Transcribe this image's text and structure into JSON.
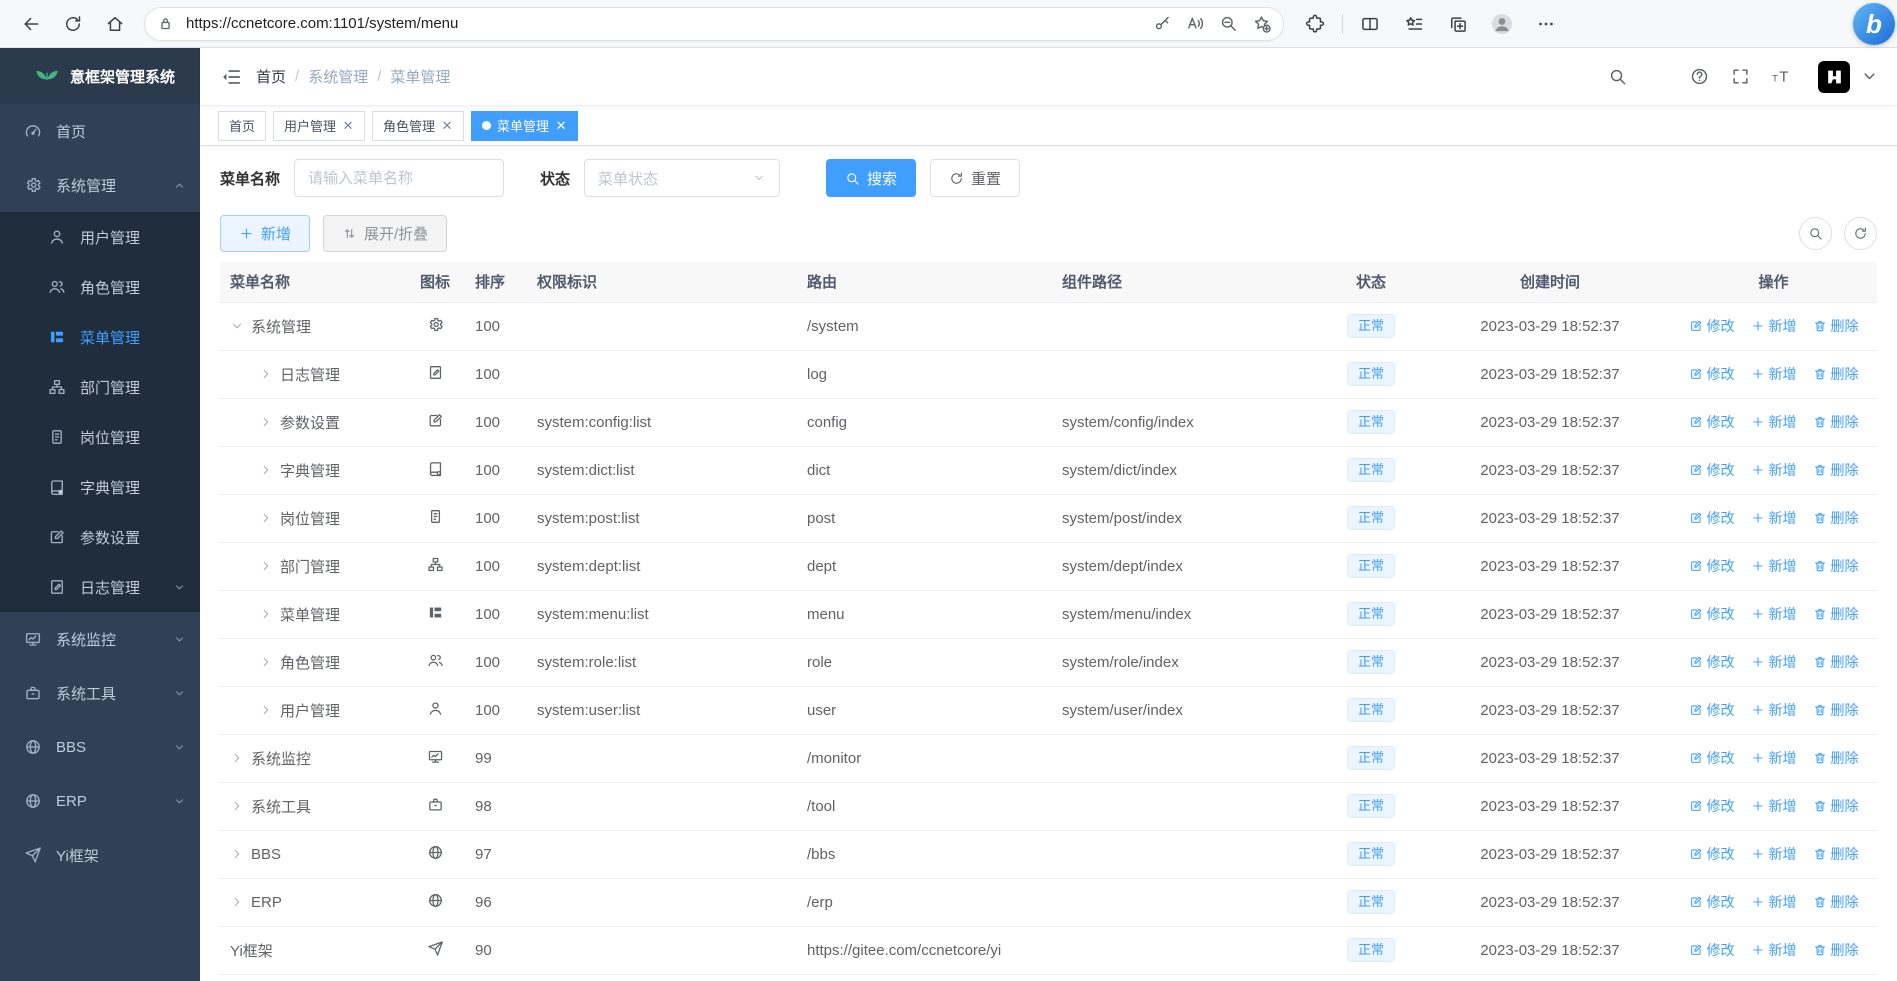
{
  "chrome": {
    "url": "https://ccnetcore.com:1101/system/menu",
    "bing_label": "b"
  },
  "sidebar": {
    "title": "意框架管理系统",
    "items": [
      {
        "label": "首页",
        "icon": "dashboard",
        "level": 0,
        "chevron": "",
        "active": false
      },
      {
        "label": "系统管理",
        "icon": "gear",
        "level": 0,
        "chevron": "up",
        "active": false
      },
      {
        "label": "用户管理",
        "icon": "user",
        "level": 1,
        "chevron": "",
        "active": false
      },
      {
        "label": "角色管理",
        "icon": "peoples",
        "level": 1,
        "chevron": "",
        "active": false
      },
      {
        "label": "菜单管理",
        "icon": "menu",
        "level": 1,
        "chevron": "",
        "active": true
      },
      {
        "label": "部门管理",
        "icon": "dept",
        "level": 1,
        "chevron": "",
        "active": false
      },
      {
        "label": "岗位管理",
        "icon": "post",
        "level": 1,
        "chevron": "",
        "active": false
      },
      {
        "label": "字典管理",
        "icon": "dict",
        "level": 1,
        "chevron": "",
        "active": false
      },
      {
        "label": "参数设置",
        "icon": "edit",
        "level": 1,
        "chevron": "",
        "active": false
      },
      {
        "label": "日志管理",
        "icon": "log",
        "level": 1,
        "chevron": "down",
        "active": false
      },
      {
        "label": "系统监控",
        "icon": "monitor",
        "level": 0,
        "chevron": "down",
        "active": false
      },
      {
        "label": "系统工具",
        "icon": "tool",
        "level": 0,
        "chevron": "down",
        "active": false
      },
      {
        "label": "BBS",
        "icon": "globe",
        "level": 0,
        "chevron": "down",
        "active": false
      },
      {
        "label": "ERP",
        "icon": "globe",
        "level": 0,
        "chevron": "down",
        "active": false
      },
      {
        "label": "Yi框架",
        "icon": "guide",
        "level": 0,
        "chevron": "",
        "active": false
      }
    ]
  },
  "navbar": {
    "breadcrumb": {
      "0": "首页",
      "1": "系统管理",
      "2": "菜单管理"
    }
  },
  "tabs": [
    {
      "label": "首页",
      "closable": false,
      "active": false
    },
    {
      "label": "用户管理",
      "closable": true,
      "active": false
    },
    {
      "label": "角色管理",
      "closable": true,
      "active": false
    },
    {
      "label": "菜单管理",
      "closable": true,
      "active": true
    }
  ],
  "filter": {
    "name_label": "菜单名称",
    "name_placeholder": "请输入菜单名称",
    "status_label": "状态",
    "status_placeholder": "菜单状态",
    "search_label": "搜索",
    "reset_label": "重置"
  },
  "toolbar": {
    "add_label": "新增",
    "toggle_label": "展开/折叠"
  },
  "table": {
    "headers": [
      "菜单名称",
      "图标",
      "排序",
      "权限标识",
      "路由",
      "组件路径",
      "状态",
      "创建时间",
      "操作"
    ],
    "action_labels": [
      "修改",
      "新增",
      "删除"
    ],
    "rows": [
      {
        "caret": "down",
        "indent": 0,
        "name": "系统管理",
        "icon": "gear",
        "order": "100",
        "perms": "",
        "route": "/system",
        "component": "",
        "status": "正常",
        "created": "2023-03-29 18:52:37"
      },
      {
        "caret": "right",
        "indent": 1,
        "name": "日志管理",
        "icon": "log",
        "order": "100",
        "perms": "",
        "route": "log",
        "component": "",
        "status": "正常",
        "created": "2023-03-29 18:52:37"
      },
      {
        "caret": "right",
        "indent": 1,
        "name": "参数设置",
        "icon": "edit",
        "order": "100",
        "perms": "system:config:list",
        "route": "config",
        "component": "system/config/index",
        "status": "正常",
        "created": "2023-03-29 18:52:37"
      },
      {
        "caret": "right",
        "indent": 1,
        "name": "字典管理",
        "icon": "dict",
        "order": "100",
        "perms": "system:dict:list",
        "route": "dict",
        "component": "system/dict/index",
        "status": "正常",
        "created": "2023-03-29 18:52:37"
      },
      {
        "caret": "right",
        "indent": 1,
        "name": "岗位管理",
        "icon": "post",
        "order": "100",
        "perms": "system:post:list",
        "route": "post",
        "component": "system/post/index",
        "status": "正常",
        "created": "2023-03-29 18:52:37"
      },
      {
        "caret": "right",
        "indent": 1,
        "name": "部门管理",
        "icon": "dept",
        "order": "100",
        "perms": "system:dept:list",
        "route": "dept",
        "component": "system/dept/index",
        "status": "正常",
        "created": "2023-03-29 18:52:37"
      },
      {
        "caret": "right",
        "indent": 1,
        "name": "菜单管理",
        "icon": "menu",
        "order": "100",
        "perms": "system:menu:list",
        "route": "menu",
        "component": "system/menu/index",
        "status": "正常",
        "created": "2023-03-29 18:52:37"
      },
      {
        "caret": "right",
        "indent": 1,
        "name": "角色管理",
        "icon": "peoples",
        "order": "100",
        "perms": "system:role:list",
        "route": "role",
        "component": "system/role/index",
        "status": "正常",
        "created": "2023-03-29 18:52:37"
      },
      {
        "caret": "right",
        "indent": 1,
        "name": "用户管理",
        "icon": "user",
        "order": "100",
        "perms": "system:user:list",
        "route": "user",
        "component": "system/user/index",
        "status": "正常",
        "created": "2023-03-29 18:52:37"
      },
      {
        "caret": "right",
        "indent": 0,
        "name": "系统监控",
        "icon": "monitor",
        "order": "99",
        "perms": "",
        "route": "/monitor",
        "component": "",
        "status": "正常",
        "created": "2023-03-29 18:52:37"
      },
      {
        "caret": "right",
        "indent": 0,
        "name": "系统工具",
        "icon": "tool",
        "order": "98",
        "perms": "",
        "route": "/tool",
        "component": "",
        "status": "正常",
        "created": "2023-03-29 18:52:37"
      },
      {
        "caret": "right",
        "indent": 0,
        "name": "BBS",
        "icon": "globe",
        "order": "97",
        "perms": "",
        "route": "/bbs",
        "component": "",
        "status": "正常",
        "created": "2023-03-29 18:52:37"
      },
      {
        "caret": "right",
        "indent": 0,
        "name": "ERP",
        "icon": "globe",
        "order": "96",
        "perms": "",
        "route": "/erp",
        "component": "",
        "status": "正常",
        "created": "2023-03-29 18:52:37"
      },
      {
        "caret": "none",
        "indent": 0,
        "name": "Yi框架",
        "icon": "guide",
        "order": "90",
        "perms": "",
        "route": "https://gitee.com/ccnetcore/yi",
        "component": "",
        "status": "正常",
        "created": "2023-03-29 18:52:37"
      }
    ]
  },
  "colors": {
    "accent": "#409eff",
    "sidebar_bg": "#304156",
    "submenu_bg": "#1f2d3d",
    "badge_bg": "#ecf5ff"
  }
}
